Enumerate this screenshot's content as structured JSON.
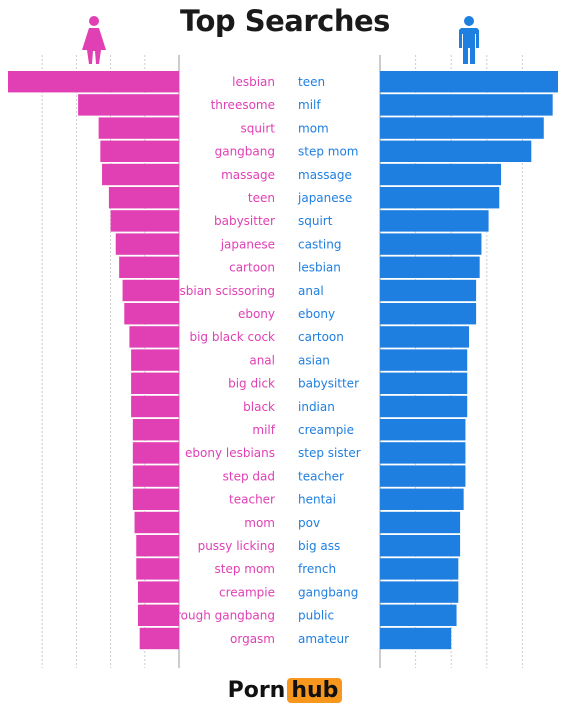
{
  "title": "Top Searches",
  "colors": {
    "female": "#e040b4",
    "male": "#1f7fe0",
    "grid": "#cccccc",
    "title": "#1a1a1a",
    "logo_accent": "#f7971d"
  },
  "icons": {
    "female": "female-figure-icon",
    "male": "male-figure-icon"
  },
  "footer": {
    "logo_part1": "Porn",
    "logo_part2": "hub"
  },
  "chart_data": {
    "type": "bar",
    "title": "Top Searches",
    "orientation": "horizontal-butterfly",
    "grid": true,
    "xlim": [
      0,
      100
    ],
    "series": [
      {
        "side": "left",
        "categories": [
          "lesbian",
          "threesome",
          "squirt",
          "gangbang",
          "massage",
          "teen",
          "babysitter",
          "japanese",
          "cartoon",
          "lesbian scissoring",
          "ebony",
          "big black cock",
          "anal",
          "big dick",
          "black",
          "milf",
          "ebony lesbians",
          "step dad",
          "teacher",
          "mom",
          "pussy licking",
          "step mom",
          "creampie",
          "rough gangbang",
          "orgasm"
        ],
        "values": [
          100,
          59,
          47,
          46,
          45,
          41,
          40,
          37,
          35,
          33,
          32,
          29,
          28,
          28,
          28,
          27,
          27,
          27,
          27,
          26,
          25,
          25,
          24,
          24,
          23
        ]
      },
      {
        "side": "right",
        "categories": [
          "teen",
          "milf",
          "mom",
          "step mom",
          "massage",
          "japanese",
          "squirt",
          "casting",
          "lesbian",
          "anal",
          "ebony",
          "cartoon",
          "asian",
          "babysitter",
          "indian",
          "creampie",
          "step sister",
          "teacher",
          "hentai",
          "pov",
          "big ass",
          "french",
          "gangbang",
          "public",
          "amateur"
        ],
        "values": [
          100,
          97,
          92,
          85,
          68,
          67,
          61,
          57,
          56,
          54,
          54,
          50,
          49,
          49,
          49,
          48,
          48,
          48,
          47,
          45,
          45,
          44,
          44,
          43,
          40
        ]
      }
    ]
  }
}
